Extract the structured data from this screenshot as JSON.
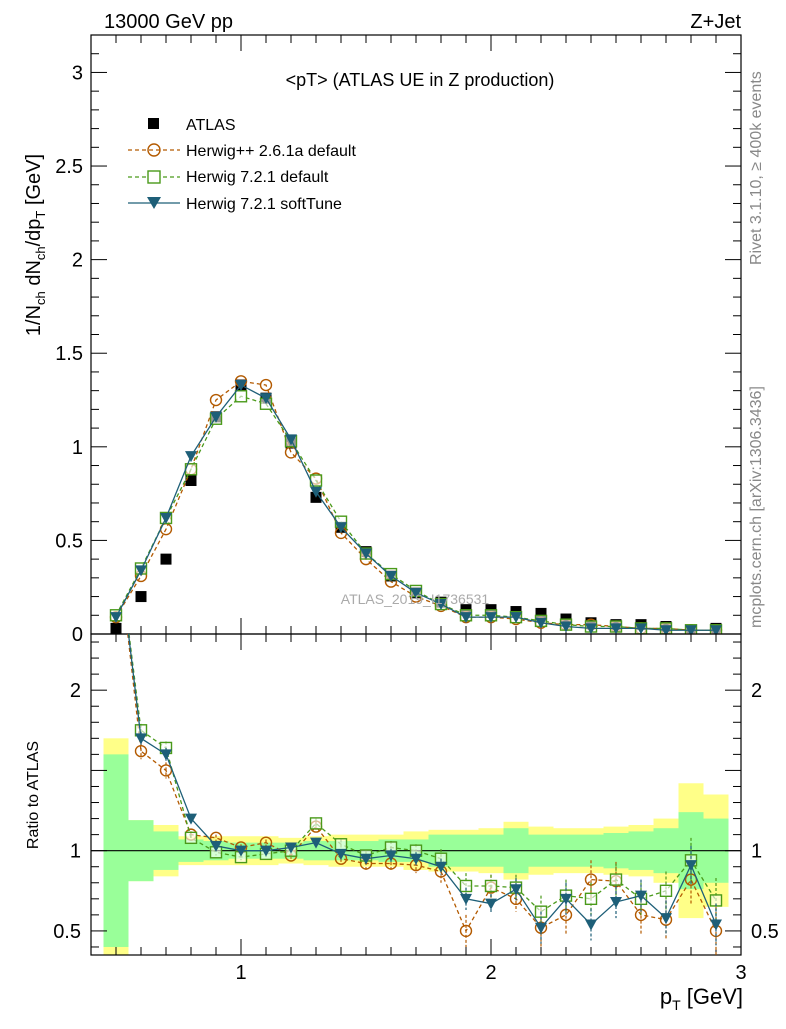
{
  "header": {
    "energy_label": "13000 GeV pp",
    "process_label": "Z+Jet"
  },
  "side_labels": {
    "rivet": "Rivet 3.1.10, ≥ 400k events",
    "mcplots": "mcplots.cern.ch [arXiv:1306.3436]"
  },
  "chart_data": {
    "type": "scatter",
    "title": "<pT> (ATLAS UE in Z production)",
    "watermark": "ATLAS_2019_I1736531",
    "main_ylabel": "1/N_ch dN_ch/dp_T [GeV]",
    "ratio_ylabel": "Ratio to ATLAS",
    "xlabel": "p_T [GeV]",
    "xlim": [
      0.4,
      3.0
    ],
    "main_ylim": [
      0,
      3.2
    ],
    "ratio_ylim": [
      0.35,
      2.35
    ],
    "x_ticks": [
      "1",
      "2",
      "3"
    ],
    "main_y_ticks": [
      "0",
      "0.5",
      "1",
      "1.5",
      "2",
      "2.5",
      "3"
    ],
    "ratio_y_ticks": [
      "0.5",
      "1",
      "2"
    ],
    "legend_position": "top-left",
    "x": [
      0.5,
      0.6,
      0.7,
      0.8,
      0.9,
      1.0,
      1.1,
      1.2,
      1.3,
      1.4,
      1.5,
      1.6,
      1.7,
      1.8,
      1.9,
      2.0,
      2.1,
      2.2,
      2.3,
      2.4,
      2.5,
      2.6,
      2.7,
      2.8,
      2.9
    ],
    "bin_edges": [
      0.45,
      0.55,
      0.65,
      0.75,
      0.85,
      0.95,
      1.05,
      1.15,
      1.25,
      1.35,
      1.45,
      1.55,
      1.65,
      1.75,
      1.85,
      1.95,
      2.05,
      2.15,
      2.25,
      2.35,
      2.45,
      2.55,
      2.65,
      2.75,
      2.85,
      2.95
    ],
    "series": [
      {
        "name": "ATLAS",
        "color": "#000000",
        "marker": "square-filled",
        "values": [
          0.03,
          0.2,
          0.4,
          0.82,
          1.16,
          1.33,
          1.26,
          1.02,
          0.73,
          0.57,
          0.44,
          0.31,
          0.22,
          0.17,
          0.13,
          0.13,
          0.12,
          0.11,
          0.08,
          0.06,
          0.05,
          0.05,
          0.04,
          0.02,
          0.03
        ]
      },
      {
        "name": "Herwig++ 2.6.1a default",
        "color": "#b35a00",
        "marker": "circle-open",
        "line": "dashed",
        "values": [
          0.09,
          0.31,
          0.56,
          0.88,
          1.25,
          1.35,
          1.33,
          0.97,
          0.83,
          0.54,
          0.4,
          0.28,
          0.2,
          0.15,
          0.09,
          0.09,
          0.08,
          0.06,
          0.05,
          0.05,
          0.04,
          0.03,
          0.03,
          0.02,
          0.02
        ]
      },
      {
        "name": "Herwig 7.2.1 default",
        "color": "#4a9a1a",
        "marker": "square-open",
        "line": "dashed",
        "values": [
          0.1,
          0.35,
          0.62,
          0.88,
          1.15,
          1.27,
          1.23,
          1.03,
          0.82,
          0.6,
          0.43,
          0.32,
          0.23,
          0.16,
          0.1,
          0.1,
          0.09,
          0.07,
          0.05,
          0.04,
          0.04,
          0.03,
          0.03,
          0.02,
          0.02
        ]
      },
      {
        "name": "Herwig 7.2.1 softTune",
        "color": "#1e5f78",
        "marker": "triangle-down-filled",
        "line": "solid",
        "values": [
          0.09,
          0.34,
          0.62,
          0.95,
          1.16,
          1.33,
          1.26,
          1.04,
          0.76,
          0.57,
          0.43,
          0.31,
          0.22,
          0.16,
          0.09,
          0.09,
          0.09,
          0.06,
          0.04,
          0.03,
          0.03,
          0.03,
          0.02,
          0.02,
          0.02
        ]
      }
    ],
    "ratio_series": [
      {
        "name": "Herwig++ 2.6.1a default",
        "values": [
          3.0,
          1.62,
          1.5,
          1.1,
          1.08,
          1.02,
          1.05,
          0.97,
          1.15,
          0.95,
          0.92,
          0.92,
          0.91,
          0.87,
          0.5,
          0.77,
          0.7,
          0.52,
          0.6,
          0.82,
          0.81,
          0.6,
          0.57,
          0.82,
          0.5
        ],
        "errors": [
          0.0,
          0.05,
          0.05,
          0.02,
          0.02,
          0.02,
          0.02,
          0.02,
          0.03,
          0.03,
          0.04,
          0.04,
          0.05,
          0.07,
          0.1,
          0.08,
          0.08,
          0.12,
          0.12,
          0.12,
          0.12,
          0.12,
          0.12,
          0.15,
          0.15
        ]
      },
      {
        "name": "Herwig 7.2.1 default",
        "values": [
          3.0,
          1.75,
          1.64,
          1.08,
          0.99,
          0.96,
          0.98,
          1.0,
          1.17,
          1.04,
          0.97,
          1.02,
          1.0,
          0.95,
          0.78,
          0.78,
          0.77,
          0.62,
          0.72,
          0.7,
          0.82,
          0.7,
          0.75,
          0.94,
          0.69
        ],
        "errors": [
          0.0,
          0.04,
          0.04,
          0.02,
          0.02,
          0.02,
          0.02,
          0.02,
          0.03,
          0.03,
          0.03,
          0.04,
          0.04,
          0.06,
          0.08,
          0.07,
          0.08,
          0.1,
          0.1,
          0.1,
          0.1,
          0.1,
          0.12,
          0.14,
          0.14
        ]
      },
      {
        "name": "Herwig 7.2.1 softTune",
        "values": [
          3.0,
          1.7,
          1.6,
          1.2,
          1.03,
          1.0,
          1.0,
          1.02,
          1.05,
          0.98,
          0.95,
          0.97,
          0.95,
          0.9,
          0.7,
          0.67,
          0.76,
          0.52,
          0.7,
          0.54,
          0.68,
          0.72,
          0.58,
          0.91,
          0.54
        ],
        "errors": [
          0.0,
          0.04,
          0.04,
          0.02,
          0.02,
          0.02,
          0.02,
          0.02,
          0.03,
          0.03,
          0.03,
          0.04,
          0.04,
          0.05,
          0.07,
          0.06,
          0.07,
          0.1,
          0.1,
          0.1,
          0.1,
          0.1,
          0.11,
          0.12,
          0.13
        ]
      }
    ],
    "stat_band": [
      0.6,
      0.19,
      0.12,
      0.07,
      0.06,
      0.05,
      0.05,
      0.05,
      0.06,
      0.06,
      0.06,
      0.07,
      0.07,
      0.1,
      0.1,
      0.1,
      0.14,
      0.1,
      0.1,
      0.1,
      0.11,
      0.12,
      0.14,
      0.24,
      0.2
    ],
    "syst_band": [
      0.7,
      0.19,
      0.16,
      0.09,
      0.09,
      0.09,
      0.09,
      0.08,
      0.09,
      0.1,
      0.1,
      0.1,
      0.12,
      0.13,
      0.13,
      0.14,
      0.18,
      0.15,
      0.14,
      0.14,
      0.15,
      0.16,
      0.2,
      0.42,
      0.35
    ],
    "colors": {
      "stat_band": "#99ff99",
      "syst_band": "#ffff88"
    }
  }
}
